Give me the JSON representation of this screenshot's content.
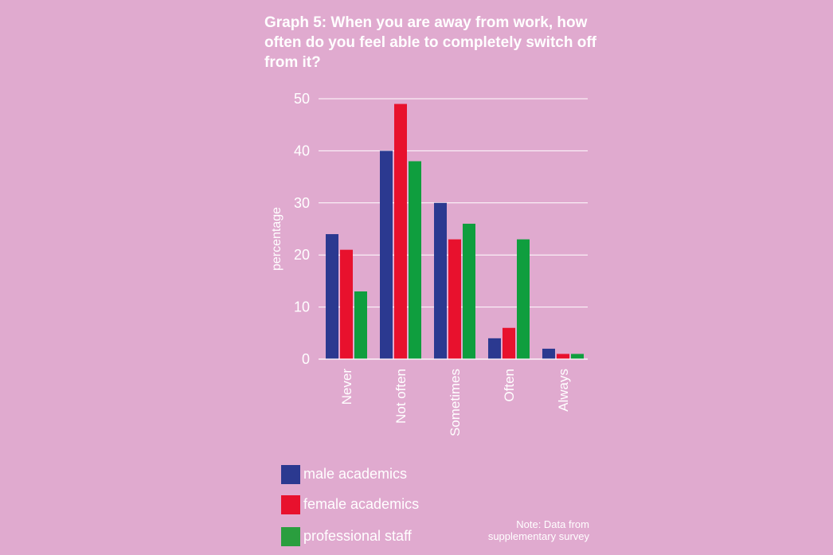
{
  "chart_data": {
    "type": "bar",
    "title": "Graph 5: When you are away from work, how often do you feel able to completely switch off from it?",
    "xlabel": "",
    "ylabel": "percentage",
    "ylim": [
      0,
      50
    ],
    "yticks": [
      0,
      10,
      20,
      30,
      40,
      50
    ],
    "grid": true,
    "legend_position": "bottom-left",
    "categories": [
      "Never",
      "Not often",
      "Sometimes",
      "Often",
      "Always"
    ],
    "series": [
      {
        "name": "male academics",
        "color": "#2b3990",
        "values": [
          24,
          40,
          30,
          4,
          2
        ]
      },
      {
        "name": "female academics",
        "color": "#e8112d",
        "values": [
          21,
          49,
          23,
          6,
          1
        ]
      },
      {
        "name": "professional staff",
        "color": "#0f9e3e",
        "values": [
          13,
          38,
          26,
          23,
          1
        ]
      }
    ],
    "note": "Note: Data from supplementary survey"
  },
  "legend_swatch_colors": [
    "#2b3990",
    "#e8112d",
    "#2a9e3e"
  ]
}
